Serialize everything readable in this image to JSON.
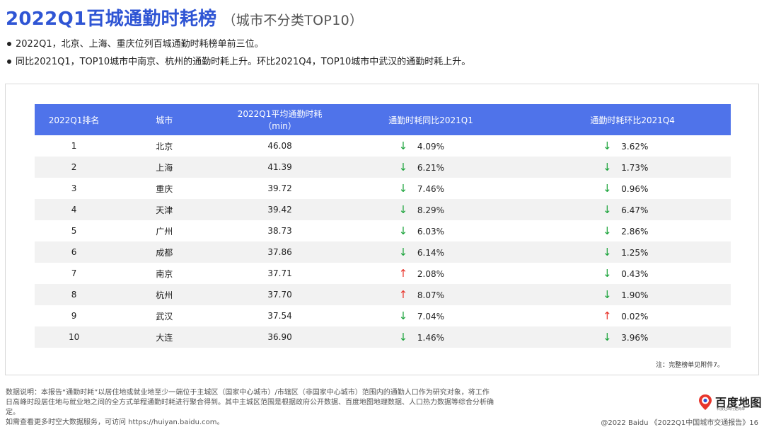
{
  "title": "2022Q1百城通勤时耗榜",
  "subtitle": "（城市不分类TOP10）",
  "bullets": [
    "2022Q1，北京、上海、重庆位列百城通勤时耗榜单前三位。",
    "同比2021Q1，TOP10城市中南京、杭州的通勤时耗上升。环比2021Q4，TOP10城市中武汉的通勤时耗上升。"
  ],
  "table": {
    "headers": [
      "2022Q1排名",
      "城市",
      "2022Q1平均通勤时耗（min）",
      "通勤时耗同比2021Q1",
      "通勤时耗环比2021Q4"
    ],
    "rows": [
      {
        "rank": "1",
        "city": "北京",
        "time": "46.08",
        "yoy_dir": "down",
        "yoy": "4.09%",
        "qoq_dir": "down",
        "qoq": "3.62%"
      },
      {
        "rank": "2",
        "city": "上海",
        "time": "41.39",
        "yoy_dir": "down",
        "yoy": "6.21%",
        "qoq_dir": "down",
        "qoq": "1.73%"
      },
      {
        "rank": "3",
        "city": "重庆",
        "time": "39.72",
        "yoy_dir": "down",
        "yoy": "7.46%",
        "qoq_dir": "down",
        "qoq": "0.96%"
      },
      {
        "rank": "4",
        "city": "天津",
        "time": "39.42",
        "yoy_dir": "down",
        "yoy": "8.29%",
        "qoq_dir": "down",
        "qoq": "6.47%"
      },
      {
        "rank": "5",
        "city": "广州",
        "time": "38.73",
        "yoy_dir": "down",
        "yoy": "6.03%",
        "qoq_dir": "down",
        "qoq": "2.86%"
      },
      {
        "rank": "6",
        "city": "成都",
        "time": "37.86",
        "yoy_dir": "down",
        "yoy": "6.14%",
        "qoq_dir": "down",
        "qoq": "1.25%"
      },
      {
        "rank": "7",
        "city": "南京",
        "time": "37.71",
        "yoy_dir": "up",
        "yoy": "2.08%",
        "qoq_dir": "down",
        "qoq": "0.43%"
      },
      {
        "rank": "8",
        "city": "杭州",
        "time": "37.70",
        "yoy_dir": "up",
        "yoy": "8.07%",
        "qoq_dir": "down",
        "qoq": "1.90%"
      },
      {
        "rank": "9",
        "city": "武汉",
        "time": "37.54",
        "yoy_dir": "down",
        "yoy": "7.04%",
        "qoq_dir": "up",
        "qoq": "0.02%"
      },
      {
        "rank": "10",
        "city": "大连",
        "time": "36.90",
        "yoy_dir": "down",
        "yoy": "1.46%",
        "qoq_dir": "down",
        "qoq": "3.96%"
      }
    ]
  },
  "arrows": {
    "up": "↑",
    "down": "↓"
  },
  "colors": {
    "accent": "#2f55d4",
    "header_bg": "#4f73ea",
    "down": "#1aa33a",
    "up": "#e8352c"
  },
  "note": "注：完整榜单见附件7。",
  "footer": [
    "数据说明：本报告“通勤时耗”以居住地或就业地至少一端位于主城区（国家中心城市）/市辖区（非国家中心城市）范围内的通勤人口作为研究对象，将工作日高峰时段居住地与就业地之间的全方式单程通勤时耗进行聚合得到。其中主城区范围是根据政府公开数据、百度地图地理数据、人口热力数据等综合分析确定。",
    "如需查看更多时空大数据服务，可访问 https://huiyan.baidu.com。"
  ],
  "logo": {
    "name": "百度地图",
    "tagline": "科技让出行更简单",
    "icon": "baidu-map-pin-icon"
  },
  "copyright": "@2022 Baidu 《2022Q1中国城市交通报告》16"
}
